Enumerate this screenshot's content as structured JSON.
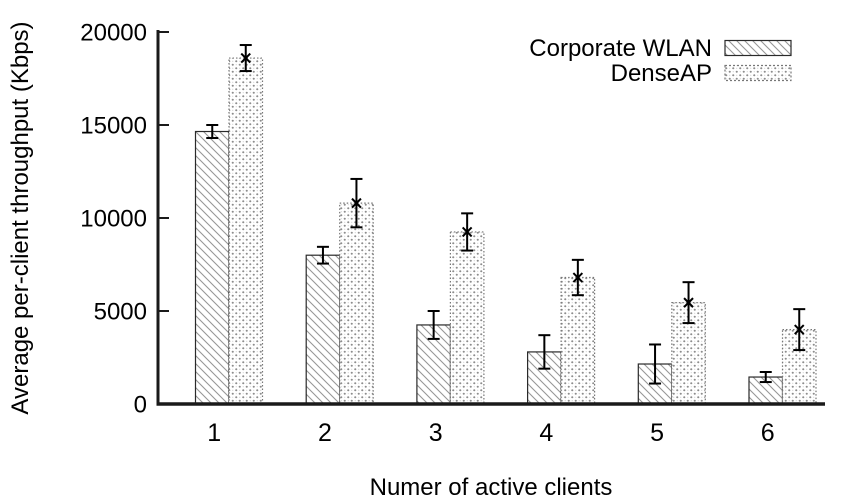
{
  "chart_data": {
    "type": "bar",
    "title": "",
    "xlabel": "Numer of active clients",
    "ylabel": "Average per-client throughput (Kbps)",
    "categories": [
      "1",
      "2",
      "3",
      "4",
      "5",
      "6"
    ],
    "series": [
      {
        "name": "Corporate WLAN",
        "pattern": "diagonal-hatch",
        "marker": "none",
        "values": [
          14650,
          8000,
          4250,
          2800,
          2150,
          1450
        ],
        "errors": [
          350,
          450,
          750,
          900,
          1050,
          270
        ]
      },
      {
        "name": "DenseAP",
        "pattern": "dotted-diamond",
        "marker": "x",
        "values": [
          18600,
          10800,
          9250,
          6800,
          5450,
          4000
        ],
        "errors": [
          700,
          1300,
          1000,
          950,
          1100,
          1100
        ]
      }
    ],
    "ylim": [
      0,
      20000
    ],
    "yticks": [
      0,
      5000,
      10000,
      15000,
      20000
    ],
    "legend_position": "top-right",
    "grid": false,
    "error_bars": true,
    "colors": {
      "foreground": "#000000",
      "background": "#ffffff",
      "bar_outline": "#2a2a2a",
      "hatch_line": "#979797",
      "dot": "#8c8c8c",
      "dense_outline": "#777777"
    }
  }
}
